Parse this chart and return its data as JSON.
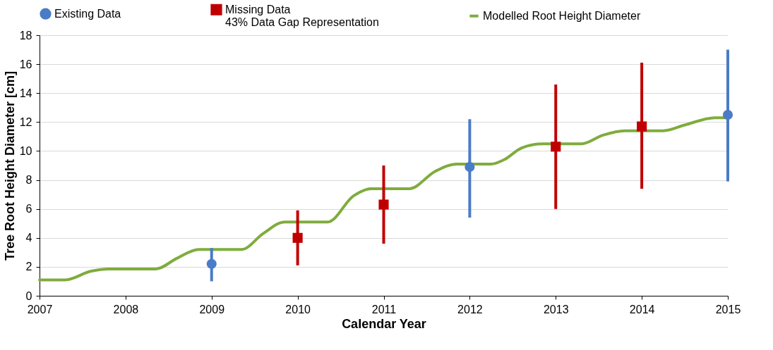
{
  "chart_data": {
    "type": "scatter",
    "xlabel": "Calendar Year",
    "ylabel": "Tree Root Height Diameter [cm]",
    "xlim": [
      2007,
      2015
    ],
    "xticks": [
      2007,
      2008,
      2009,
      2010,
      2011,
      2012,
      2013,
      2014,
      2015
    ],
    "ylim": [
      0,
      18
    ],
    "yticks": [
      0,
      2,
      4,
      6,
      8,
      10,
      12,
      14,
      16,
      18
    ],
    "grid": "y",
    "legend": "top",
    "annotations": [
      "43% Data Gap Representation"
    ],
    "series": [
      {
        "name": "Existing Data",
        "marker": "circle",
        "color": "#4a7cc7",
        "x": [
          2009,
          2012,
          2015
        ],
        "values": [
          2.2,
          8.9,
          12.5
        ],
        "errors": [
          [
            1.0,
            3.3
          ],
          [
            5.4,
            12.2
          ],
          [
            7.9,
            17.0
          ]
        ]
      },
      {
        "name": "Missing Data",
        "marker": "square",
        "color": "#c00000",
        "x": [
          2010,
          2011,
          2013,
          2014
        ],
        "values": [
          4.0,
          6.3,
          10.3,
          11.7
        ],
        "errors": [
          [
            2.1,
            5.9
          ],
          [
            3.6,
            9.0
          ],
          [
            6.0,
            14.6
          ],
          [
            7.4,
            16.1
          ]
        ]
      },
      {
        "name": "Modelled Root Height Diameter",
        "type": "line",
        "color": "#7fac3e",
        "x": [
          2007,
          2007.3,
          2007.6,
          2007.8,
          2008.35,
          2008.6,
          2008.85,
          2009.35,
          2009.6,
          2009.85,
          2010.35,
          2010.65,
          2010.85,
          2011.3,
          2011.6,
          2011.85,
          2012.25,
          2012.4,
          2012.6,
          2012.85,
          2013.3,
          2013.55,
          2013.8,
          2014.25,
          2014.5,
          2014.85,
          2015
        ],
        "values": [
          1.1,
          1.1,
          1.7,
          1.85,
          1.85,
          2.6,
          3.2,
          3.2,
          4.3,
          5.1,
          5.1,
          6.9,
          7.4,
          7.4,
          8.6,
          9.1,
          9.1,
          9.4,
          10.2,
          10.5,
          10.5,
          11.1,
          11.4,
          11.4,
          11.8,
          12.3,
          12.3
        ]
      }
    ]
  }
}
